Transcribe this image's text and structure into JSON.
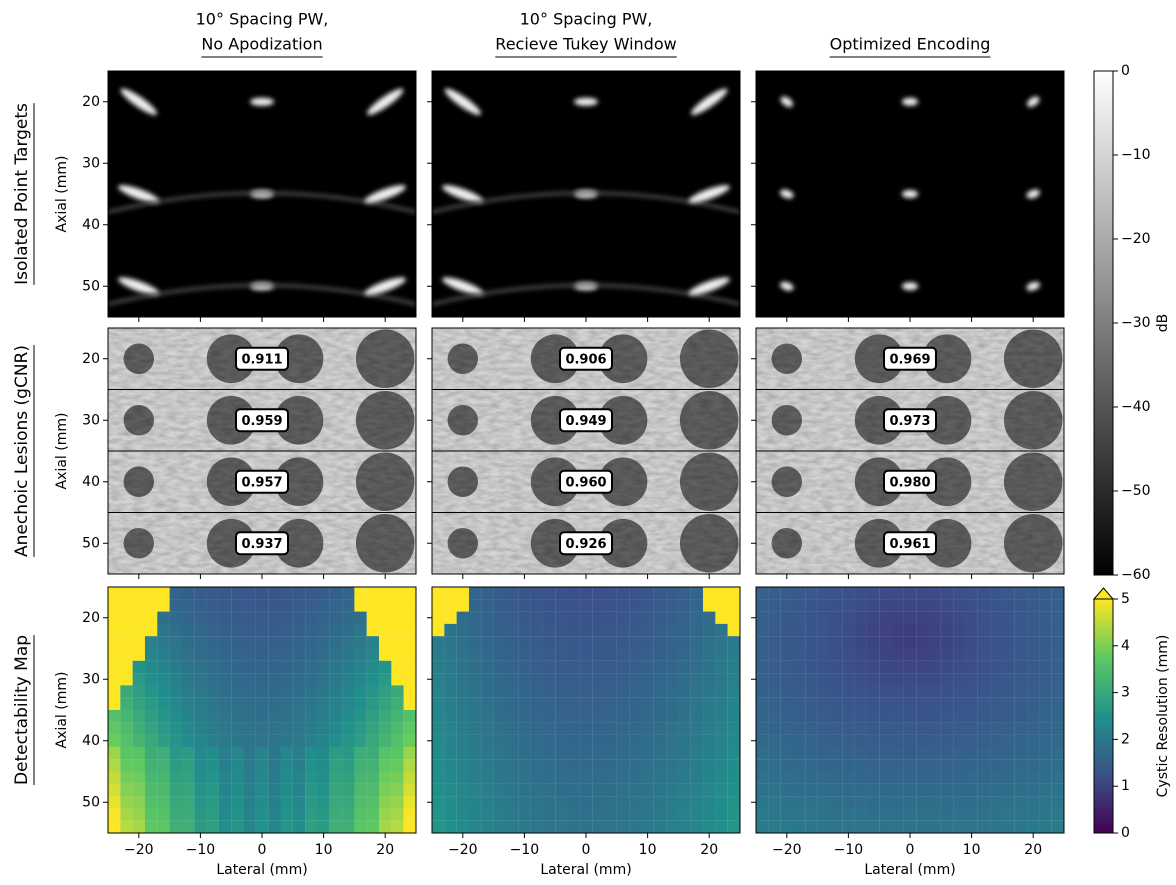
{
  "columns": [
    {
      "title": [
        "10° Spacing PW,",
        "No Apodization"
      ]
    },
    {
      "title": [
        "10° Spacing PW,",
        "Recieve Tukey Window"
      ]
    },
    {
      "title": [
        "Optimized Encoding"
      ]
    }
  ],
  "rows": [
    "Isolated Point Targets",
    "Anechoic Lesions (gCNR)",
    "Detectability Map"
  ],
  "x_axis": {
    "label": "Lateral (mm)",
    "lim": [
      -25,
      25
    ],
    "ticks": [
      {
        "value": -20,
        "label": "−20"
      },
      {
        "value": -10,
        "label": "−10"
      },
      0,
      10,
      20
    ]
  },
  "y_axis": {
    "label": "Axial (mm)",
    "lim": [
      15,
      55
    ],
    "ticks": [
      20,
      30,
      40,
      50
    ]
  },
  "gcnr": [
    [
      0.911,
      0.959,
      0.957,
      0.937
    ],
    [
      0.906,
      0.949,
      {
        "value": 0.96,
        "label": "0.960"
      },
      0.926
    ],
    [
      0.969,
      0.973,
      {
        "value": 0.98,
        "label": "0.980"
      },
      0.961
    ]
  ],
  "db_colorbar": {
    "label": "dB",
    "lim": [
      -60,
      0
    ],
    "ticks": [
      0,
      {
        "value": -10,
        "label": "−10"
      },
      {
        "value": -20,
        "label": "−20"
      },
      {
        "value": -30,
        "label": "−30"
      },
      {
        "value": -40,
        "label": "−40"
      },
      {
        "value": -50,
        "label": "−50"
      },
      {
        "value": -60,
        "label": "−60"
      }
    ]
  },
  "resolution_colorbar": {
    "label": "Cystic Resolution (mm)",
    "lim": [
      0,
      5
    ],
    "ticks": [
      0,
      1,
      2,
      3,
      4,
      5
    ]
  }
}
